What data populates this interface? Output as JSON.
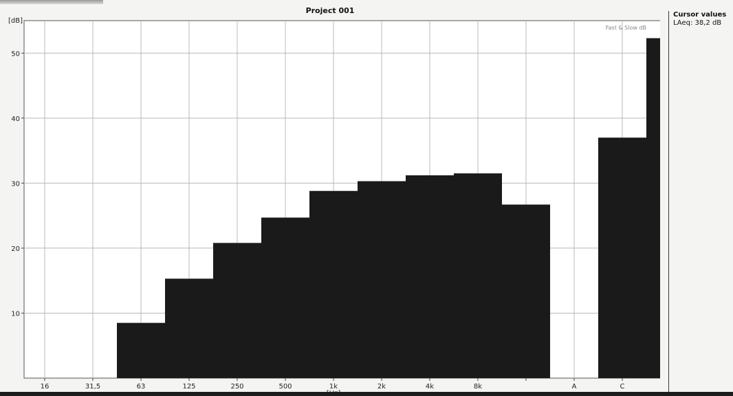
{
  "chart_data": {
    "type": "bar",
    "title": "Project 001",
    "ylabel": "[dB]",
    "xlabel": "[Hz]",
    "ylim": [
      0,
      55
    ],
    "yticks": [
      "10",
      "20",
      "30",
      "40",
      "50"
    ],
    "grid": true,
    "legend_text": "Fast & Slow dB",
    "legend_position": "top-right",
    "categories": [
      "16",
      "31,5",
      "63",
      "125",
      "250",
      "500",
      "1k",
      "2k",
      "4k",
      "8k",
      "",
      "A",
      "C"
    ],
    "values": [
      null,
      8.5,
      15.3,
      20.8,
      24.7,
      28.8,
      30.3,
      31.2,
      31.5,
      26.7,
      null,
      37.0,
      52.3
    ],
    "bar_color": "#1a1a1a",
    "grid_color": "#b8b8b8"
  },
  "cursor_panel": {
    "title": "Cursor values",
    "value": "LAeq: 38,2 dB"
  }
}
